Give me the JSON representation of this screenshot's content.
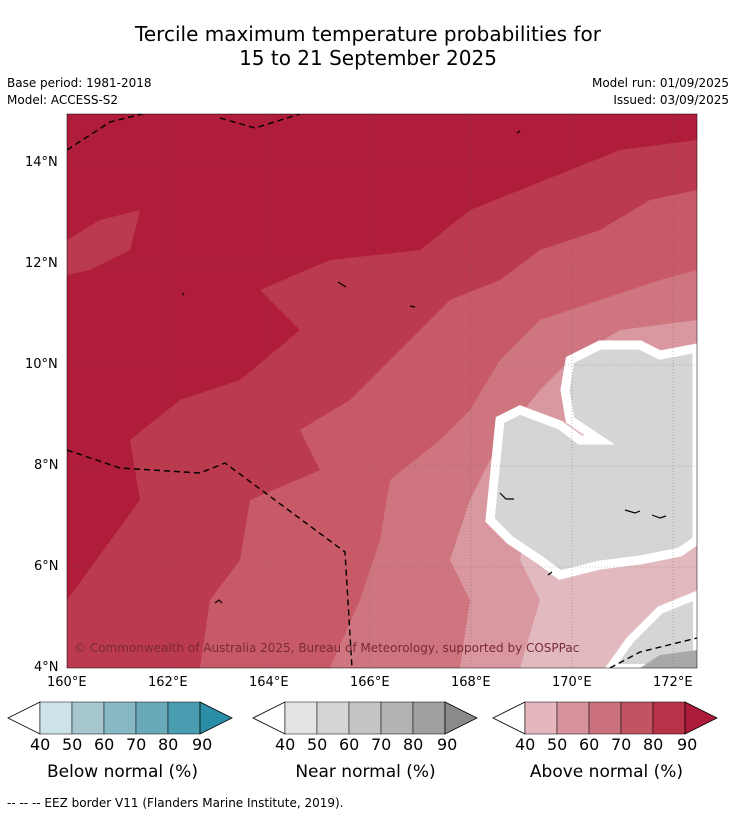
{
  "title_line1": "Tercile maximum temperature probabilities for",
  "title_line2": "15 to 21 September 2025",
  "meta": {
    "base_period": "Base period: 1981-2018",
    "model": "Model: ACCESS-S2",
    "model_run": "Model run: 01/09/2025",
    "issued": "Issued: 03/09/2025"
  },
  "map": {
    "lat_labels": [
      "14°N",
      "12°N",
      "10°N",
      "8°N",
      "6°N",
      "4°N"
    ],
    "lon_labels": [
      "160°E",
      "162°E",
      "164°E",
      "166°E",
      "168°E",
      "170°E",
      "172°E"
    ],
    "extent": {
      "lon_min": 160,
      "lon_max": 172.5,
      "lat_min": 4,
      "lat_max": 15
    },
    "copyright": "© Commonwealth of Australia 2025, Bureau of Meteorology, supported by COSPPac"
  },
  "legends": [
    {
      "title": "Below normal (%)",
      "ticks": [
        "40",
        "50",
        "60",
        "70",
        "80",
        "90"
      ],
      "colors": [
        "#cde3e9",
        "#a6c7cf",
        "#87b8c4",
        "#6aaab8",
        "#4a9cb0",
        "#2b8ea6"
      ]
    },
    {
      "title": "Near normal (%)",
      "ticks": [
        "40",
        "50",
        "60",
        "70",
        "80",
        "90"
      ],
      "colors": [
        "#e4e4e4",
        "#d5d5d5",
        "#c5c5c5",
        "#b3b3b3",
        "#a0a0a0",
        "#8a8a8a"
      ]
    },
    {
      "title": "Above normal (%)",
      "ticks": [
        "40",
        "50",
        "60",
        "70",
        "80",
        "90"
      ],
      "colors": [
        "#e3b7bd",
        "#d6939c",
        "#ca717d",
        "#c05463",
        "#b83347",
        "#ad1b3a"
      ]
    }
  ],
  "footer": "--  --  -- EEZ border V11 (Flanders Marine Institute, 2019)."
}
